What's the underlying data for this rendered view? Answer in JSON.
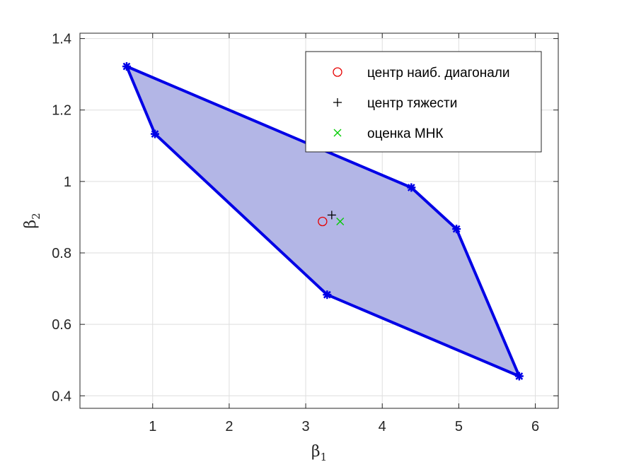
{
  "chart_data": {
    "type": "scatter",
    "title": "",
    "xlabel": "β",
    "xlabel_sub": "1",
    "ylabel": "β",
    "ylabel_sub": "2",
    "xlim": [
      0.05,
      6.3
    ],
    "ylim": [
      0.365,
      1.415
    ],
    "xticks": [
      1,
      2,
      3,
      4,
      5,
      6
    ],
    "xtick_labels": [
      "1",
      "2",
      "3",
      "4",
      "5",
      "6"
    ],
    "yticks": [
      0.4,
      0.6,
      0.8,
      1.0,
      1.2,
      1.4
    ],
    "ytick_labels": [
      "0.4",
      "0.6",
      "0.8",
      "1",
      "1.2",
      "1.4"
    ],
    "grid": true,
    "legend_position": "top-right",
    "polygon": {
      "fill_color": "#b3b6e6",
      "edge_color": "#0000e6",
      "vertices": [
        {
          "x": 0.66,
          "y": 1.322
        },
        {
          "x": 1.03,
          "y": 1.133
        },
        {
          "x": 3.28,
          "y": 0.683
        },
        {
          "x": 5.79,
          "y": 0.455
        },
        {
          "x": 4.97,
          "y": 0.867
        },
        {
          "x": 4.38,
          "y": 0.983
        }
      ]
    },
    "series": [
      {
        "name": "центр наиб. диагонали",
        "marker": "circle",
        "color": "#e60000",
        "points": [
          {
            "x": 3.22,
            "y": 0.888
          }
        ]
      },
      {
        "name": "центр тяжести",
        "marker": "plus",
        "color": "#000000",
        "points": [
          {
            "x": 3.34,
            "y": 0.906
          }
        ]
      },
      {
        "name": "оценка МНК",
        "marker": "x",
        "color": "#00cc00",
        "points": [
          {
            "x": 3.45,
            "y": 0.888
          }
        ]
      }
    ]
  }
}
